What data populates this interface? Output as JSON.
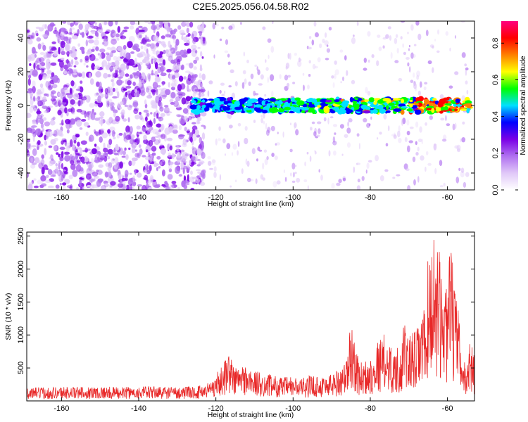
{
  "figure": {
    "title": "C2E5.2025.056.04.58.R02"
  },
  "chart_data": [
    {
      "type": "heatmap",
      "xlabel": "Height of straight line (km)",
      "ylabel": "Frequency (Hz)",
      "xlim": [
        -169,
        -53
      ],
      "ylim": [
        -50,
        50
      ],
      "x_ticks": [
        -160,
        -140,
        -120,
        -100,
        -80,
        -60
      ],
      "y_ticks": [
        -40,
        -20,
        0,
        20,
        40
      ],
      "colorbar": {
        "label": "Normalized spectral amplitude",
        "range": [
          0,
          0.92
        ],
        "ticks": [
          0.0,
          0.2,
          0.4,
          0.6,
          0.8
        ],
        "colormap": [
          "#ffffff",
          "#e0c8f8",
          "#b070f0",
          "#7a00e6",
          "#0000ff",
          "#00e0ff",
          "#00ff00",
          "#ffff00",
          "#ff8000",
          "#ff0000",
          "#ff0080"
        ]
      },
      "features": {
        "noise_region_x": [
          -169,
          -123
        ],
        "signal_band_x": [
          -126,
          -54
        ],
        "signal_band_center_hz": 0,
        "signal_band_halfwidth_hz": 4,
        "peak_amplitude_x": -62,
        "peak_amplitude": 0.9
      }
    },
    {
      "type": "line",
      "xlabel": "Height of straight line (km)",
      "ylabel": "SNR (10 * v/v)",
      "xlim": [
        -169,
        -53
      ],
      "ylim": [
        0,
        2560
      ],
      "x_ticks": [
        -160,
        -140,
        -120,
        -100,
        -80,
        -60
      ],
      "y_ticks": [
        500,
        1000,
        1500,
        2000,
        2500
      ],
      "series": [
        {
          "color": "#e82828",
          "x": [
            -169,
            -165,
            -160,
            -155,
            -150,
            -145,
            -140,
            -135,
            -130,
            -125,
            -122,
            -120,
            -118,
            -117,
            -115,
            -113,
            -110,
            -108,
            -105,
            -103,
            -100,
            -98,
            -95,
            -92,
            -90,
            -88,
            -86,
            -85,
            -83,
            -81,
            -80,
            -78,
            -76,
            -74,
            -72,
            -71,
            -70,
            -68,
            -66,
            -65,
            -64,
            -63,
            -62,
            -61,
            -60,
            -59,
            -58,
            -57,
            -56,
            -55,
            -54,
            -53
          ],
          "values": [
            180,
            190,
            200,
            195,
            200,
            190,
            200,
            205,
            195,
            200,
            260,
            380,
            520,
            720,
            480,
            520,
            420,
            390,
            360,
            330,
            340,
            310,
            360,
            350,
            390,
            450,
            600,
            1160,
            550,
            560,
            600,
            850,
            950,
            700,
            800,
            1150,
            900,
            1000,
            1300,
            2000,
            2200,
            2560,
            2000,
            1650,
            1800,
            2200,
            1500,
            1200,
            500,
            600,
            900,
            600
          ]
        }
      ]
    }
  ]
}
